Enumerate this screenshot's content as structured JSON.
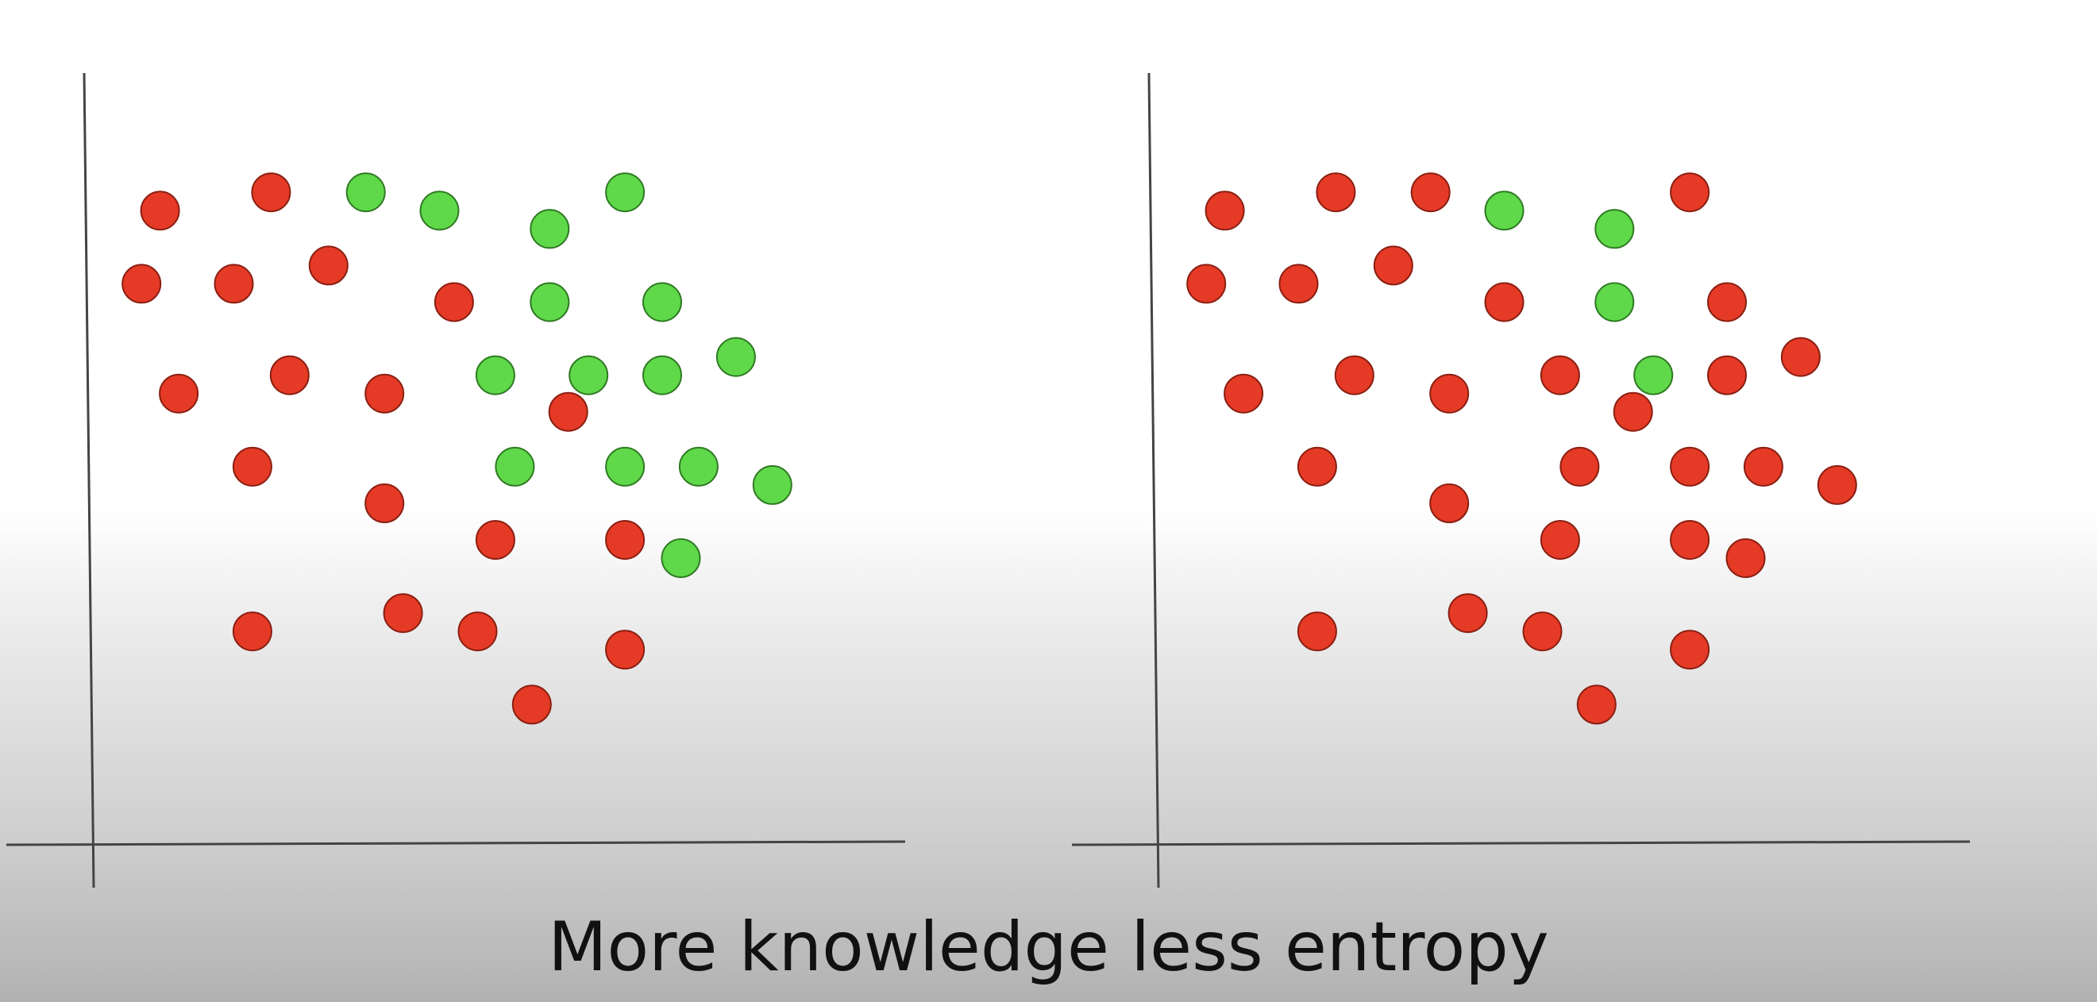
{
  "caption": "More knowledge less entropy",
  "colors": {
    "red": "#e53a26",
    "red_stroke": "#8a1f12",
    "green": "#5fd84a",
    "green_stroke": "#2f7a23",
    "axis": "#444444"
  },
  "chart_data": [
    {
      "type": "scatter",
      "title": "",
      "xlabel": "",
      "ylabel": "",
      "xlim": [
        0,
        100
      ],
      "ylim": [
        0,
        100
      ],
      "grid": false,
      "legend": "none",
      "series": [
        {
          "color": "red",
          "points": [
            [
              8.2,
              83.2
            ],
            [
              21.9,
              85.6
            ],
            [
              5.9,
              73.6
            ],
            [
              17.3,
              73.6
            ],
            [
              29.0,
              76.0
            ],
            [
              44.5,
              71.2
            ],
            [
              10.5,
              59.2
            ],
            [
              24.2,
              61.6
            ],
            [
              35.9,
              59.2
            ],
            [
              58.6,
              56.8
            ],
            [
              19.6,
              49.6
            ],
            [
              35.9,
              44.8
            ],
            [
              49.6,
              40.0
            ],
            [
              65.6,
              40.0
            ],
            [
              19.6,
              28.0
            ],
            [
              38.2,
              30.4
            ],
            [
              47.4,
              28.0
            ],
            [
              65.6,
              25.6
            ],
            [
              54.1,
              18.4
            ]
          ]
        },
        {
          "color": "green",
          "points": [
            [
              33.6,
              85.6
            ],
            [
              42.7,
              83.2
            ],
            [
              56.3,
              80.8
            ],
            [
              65.6,
              85.6
            ],
            [
              56.3,
              71.2
            ],
            [
              70.2,
              71.2
            ],
            [
              49.6,
              61.6
            ],
            [
              61.1,
              61.6
            ],
            [
              70.2,
              61.6
            ],
            [
              79.3,
              64.0
            ],
            [
              52.0,
              49.6
            ],
            [
              65.6,
              49.6
            ],
            [
              74.7,
              49.6
            ],
            [
              83.8,
              47.2
            ],
            [
              72.5,
              37.6
            ]
          ]
        }
      ]
    },
    {
      "type": "scatter",
      "title": "",
      "xlabel": "",
      "ylabel": "",
      "xlim": [
        0,
        100
      ],
      "ylim": [
        0,
        100
      ],
      "grid": false,
      "legend": "none",
      "series": [
        {
          "color": "red",
          "points": [
            [
              8.2,
              83.2
            ],
            [
              21.9,
              85.6
            ],
            [
              33.6,
              85.6
            ],
            [
              65.6,
              85.6
            ],
            [
              5.9,
              73.6
            ],
            [
              17.3,
              73.6
            ],
            [
              29.0,
              76.0
            ],
            [
              42.7,
              71.2
            ],
            [
              70.2,
              71.2
            ],
            [
              10.5,
              59.2
            ],
            [
              24.2,
              61.6
            ],
            [
              35.9,
              59.2
            ],
            [
              49.6,
              61.6
            ],
            [
              70.2,
              61.6
            ],
            [
              79.3,
              64.0
            ],
            [
              58.6,
              56.8
            ],
            [
              19.6,
              49.6
            ],
            [
              52.0,
              49.6
            ],
            [
              65.6,
              49.6
            ],
            [
              74.7,
              49.6
            ],
            [
              83.8,
              47.2
            ],
            [
              35.9,
              44.8
            ],
            [
              49.6,
              40.0
            ],
            [
              65.6,
              40.0
            ],
            [
              72.5,
              37.6
            ],
            [
              19.6,
              28.0
            ],
            [
              38.2,
              30.4
            ],
            [
              47.4,
              28.0
            ],
            [
              65.6,
              25.6
            ],
            [
              54.1,
              18.4
            ]
          ]
        },
        {
          "color": "green",
          "points": [
            [
              42.7,
              83.2
            ],
            [
              56.3,
              80.8
            ],
            [
              56.3,
              71.2
            ],
            [
              61.1,
              61.6
            ]
          ]
        }
      ]
    }
  ]
}
